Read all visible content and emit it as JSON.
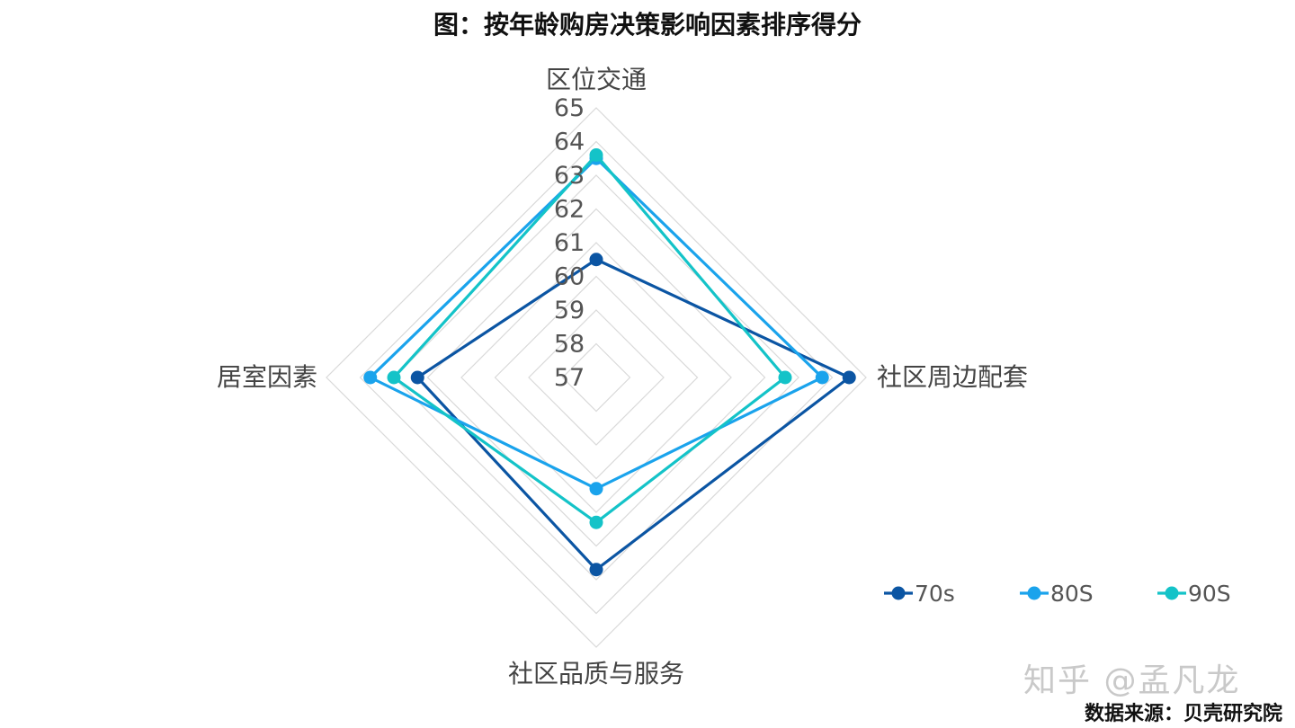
{
  "chart_data": {
    "type": "radar",
    "title": "图：按年龄购房决策影响因素排序得分",
    "axes": [
      "区位交通",
      "社区周边配套",
      "社区品质与服务",
      "居室因素"
    ],
    "range": [
      57,
      65
    ],
    "ticks": [
      "57",
      "58",
      "59",
      "60",
      "61",
      "62",
      "63",
      "64",
      "65"
    ],
    "grid": true,
    "legend_position": "bottom-right",
    "series": [
      {
        "name": "70s",
        "values": [
          60.5,
          64.5,
          62.7,
          62.3
        ],
        "color": "#0b55a3"
      },
      {
        "name": "80S",
        "values": [
          63.5,
          63.7,
          60.3,
          63.7
        ],
        "color": "#1aa3ec"
      },
      {
        "name": "90S",
        "values": [
          63.6,
          62.6,
          61.3,
          63.0
        ],
        "color": "#14c3c8"
      }
    ]
  },
  "watermark": "知乎 @孟凡龙",
  "source": "数据来源：贝壳研究院"
}
